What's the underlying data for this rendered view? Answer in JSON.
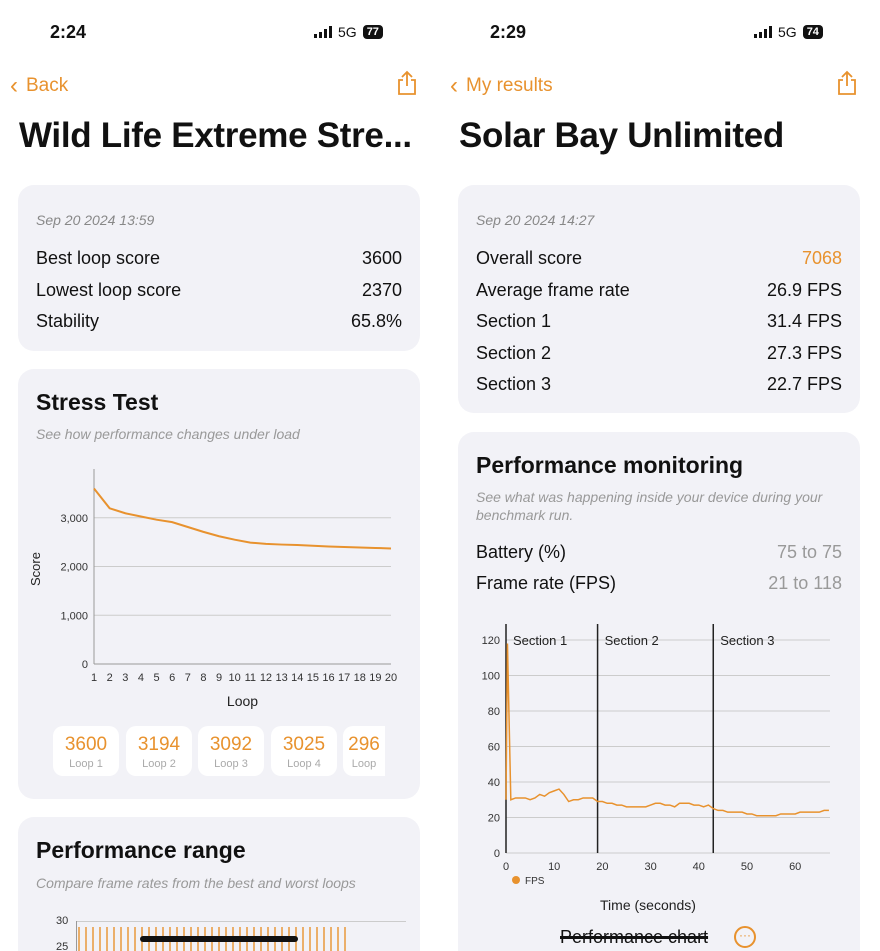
{
  "left": {
    "status": {
      "time": "2:24",
      "network": "5G",
      "battery": "77"
    },
    "nav": {
      "back_label": "Back"
    },
    "title": "Wild Life Extreme Stre...",
    "summary": {
      "date": "Sep 20 2024 13:59",
      "rows": [
        {
          "label": "Best loop score",
          "value": "3600"
        },
        {
          "label": "Lowest loop score",
          "value": "2370"
        },
        {
          "label": "Stability",
          "value": "65.8%"
        }
      ]
    },
    "stress": {
      "title": "Stress Test",
      "subtitle": "See how performance changes under load",
      "loops": [
        {
          "score": "3600",
          "label": "Loop 1"
        },
        {
          "score": "3194",
          "label": "Loop 2"
        },
        {
          "score": "3092",
          "label": "Loop 3"
        },
        {
          "score": "3025",
          "label": "Loop 4"
        },
        {
          "score": "296",
          "label": "Loop"
        }
      ]
    },
    "range": {
      "title": "Performance range",
      "subtitle": "Compare frame rates from the best and worst loops",
      "ticks": [
        "30",
        "25"
      ]
    }
  },
  "right": {
    "status": {
      "time": "2:29",
      "network": "5G",
      "battery": "74"
    },
    "nav": {
      "back_label": "My results"
    },
    "title": "Solar Bay Unlimited",
    "summary": {
      "date": "Sep 20 2024 14:27",
      "rows": [
        {
          "label": "Overall score",
          "value": "7068"
        },
        {
          "label": "Average frame rate",
          "value": "26.9 FPS"
        },
        {
          "label": "Section 1",
          "value": "31.4 FPS"
        },
        {
          "label": "Section 2",
          "value": "27.3 FPS"
        },
        {
          "label": "Section 3",
          "value": "22.7 FPS"
        }
      ]
    },
    "monitor": {
      "title": "Performance monitoring",
      "subtitle": "See what was happening inside your device during your benchmark run.",
      "rows": [
        {
          "label": "Battery (%)",
          "value": "75 to 75"
        },
        {
          "label": "Frame rate (FPS)",
          "value": "21 to 118"
        }
      ],
      "footer": "Performance chart"
    }
  },
  "colors": {
    "accent": "#e8922e",
    "card": "#f2f2f7"
  },
  "chart_data": [
    {
      "type": "line",
      "title": "Stress Test",
      "xlabel": "Loop",
      "ylabel": "Score",
      "ylim": [
        0,
        4000
      ],
      "yticks": [
        0,
        1000,
        2000,
        3000
      ],
      "ytick_labels": [
        "0",
        "1,000",
        "2,000",
        "3,000"
      ],
      "x": [
        1,
        2,
        3,
        4,
        5,
        6,
        7,
        8,
        9,
        10,
        11,
        12,
        13,
        14,
        15,
        16,
        17,
        18,
        19,
        20
      ],
      "values": [
        3600,
        3194,
        3092,
        3025,
        2960,
        2910,
        2810,
        2710,
        2620,
        2550,
        2490,
        2465,
        2450,
        2440,
        2425,
        2410,
        2400,
        2390,
        2380,
        2370
      ]
    },
    {
      "type": "line",
      "xlabel": "Time (seconds)",
      "legend": "FPS",
      "ylim": [
        0,
        120
      ],
      "xlim": [
        0,
        67
      ],
      "yticks": [
        "0",
        "20",
        "40",
        "60",
        "80",
        "100",
        "120"
      ],
      "xticks": [
        "0",
        "10",
        "20",
        "30",
        "40",
        "50",
        "60"
      ],
      "sections": [
        {
          "label": "Section 1",
          "start": 0
        },
        {
          "label": "Section 2",
          "start": 19
        },
        {
          "label": "Section 3",
          "start": 43
        }
      ],
      "x": [
        0,
        0.3,
        1,
        2,
        3,
        4,
        5,
        6,
        7,
        8,
        9,
        10,
        11,
        12,
        13,
        14,
        15,
        16,
        17,
        18,
        19,
        20,
        21,
        22,
        23,
        24,
        25,
        26,
        27,
        28,
        29,
        30,
        31,
        32,
        33,
        34,
        35,
        36,
        37,
        38,
        39,
        40,
        41,
        42,
        43,
        44,
        45,
        46,
        47,
        48,
        49,
        50,
        51,
        52,
        53,
        54,
        55,
        56,
        57,
        58,
        59,
        60,
        61,
        62,
        63,
        64,
        65,
        66,
        67
      ],
      "values": [
        30,
        118,
        30,
        31,
        31,
        31,
        30,
        31,
        33,
        32,
        34,
        35,
        36,
        33,
        29,
        30,
        30,
        31,
        31,
        31,
        29,
        29,
        28,
        28,
        27,
        27,
        26,
        26,
        26,
        26,
        26,
        27,
        28,
        28,
        27,
        27,
        26,
        28,
        28,
        28,
        27,
        27,
        26,
        27,
        25,
        24,
        24,
        23,
        23,
        23,
        23,
        22,
        22,
        21,
        21,
        21,
        21,
        21,
        22,
        22,
        22,
        22,
        23,
        23,
        23,
        23,
        23,
        24,
        24
      ]
    }
  ]
}
